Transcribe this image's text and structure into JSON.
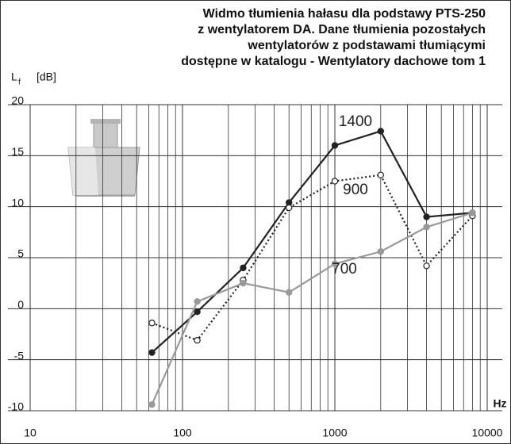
{
  "chart_data": {
    "type": "line",
    "title_lines": [
      "Widmo tłumienia hałasu dla podstawy  PTS-250",
      "z wentylatorem DA.  Dane tłumienia pozostałych",
      "wentylatorów z podstawami tłumiącymi",
      "dostępne w katalogu - Wentylatory dachowe tom 1"
    ],
    "ylabel": {
      "symbol": "L",
      "subscript": "f",
      "unit": "[dB]"
    },
    "xlabel": "Hz",
    "x": [
      63,
      125,
      250,
      500,
      1000,
      2000,
      4000,
      8000
    ],
    "series": [
      {
        "name": "1400",
        "color": "#222222",
        "marker": "filled",
        "dashed": false,
        "values": [
          -4.3,
          -0.3,
          4,
          10.4,
          16,
          17.4,
          9,
          9.4
        ]
      },
      {
        "name": "900",
        "color": "#222222",
        "marker": "open",
        "dashed": true,
        "values": [
          -1.4,
          -3.1,
          2.8,
          9.9,
          12.5,
          13.1,
          4.2,
          9.1
        ]
      },
      {
        "name": "700",
        "color": "#999999",
        "marker": "filled",
        "dashed": false,
        "values": [
          -9.4,
          0.7,
          2.5,
          1.6,
          4.4,
          5.6,
          8,
          9.4
        ]
      }
    ],
    "xlim": [
      10,
      10000
    ],
    "xticks": [
      10,
      100,
      1000,
      10000
    ],
    "xscale": "log",
    "ylim": [
      -10,
      20
    ],
    "yticks": [
      -10,
      -5,
      0,
      5,
      10,
      15,
      20
    ],
    "grid": true
  }
}
